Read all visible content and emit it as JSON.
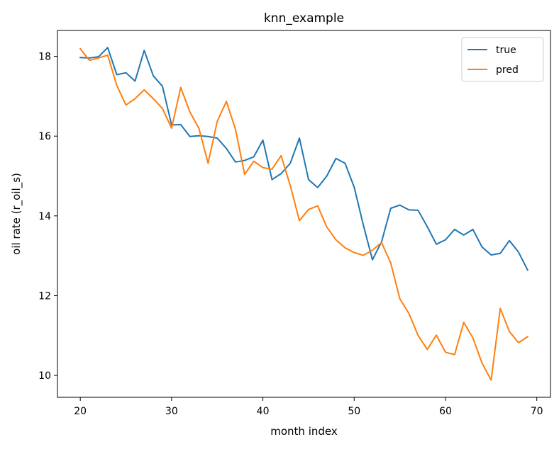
{
  "chart_data": {
    "type": "line",
    "title": "knn_example",
    "xlabel": "month index",
    "ylabel": "oil rate (r_oil_s)",
    "xlim": [
      17.5,
      71.5
    ],
    "ylim": [
      9.45,
      18.65
    ],
    "xticks": [
      20,
      30,
      40,
      50,
      60,
      70
    ],
    "yticks": [
      10,
      12,
      14,
      16,
      18
    ],
    "grid": false,
    "legend_position": "top-right",
    "x": [
      20,
      21,
      22,
      23,
      24,
      25,
      26,
      27,
      28,
      29,
      30,
      31,
      32,
      33,
      34,
      35,
      36,
      37,
      38,
      39,
      40,
      41,
      42,
      43,
      44,
      45,
      46,
      47,
      48,
      49,
      50,
      51,
      52,
      53,
      54,
      55,
      56,
      57,
      58,
      59,
      60,
      61,
      62,
      63,
      64,
      65,
      66,
      67,
      68,
      69
    ],
    "series": [
      {
        "name": "true",
        "color": "#1f77b4",
        "values": [
          17.97,
          17.96,
          17.99,
          18.22,
          17.54,
          17.59,
          17.38,
          18.15,
          17.51,
          17.25,
          16.28,
          16.29,
          15.99,
          16.01,
          15.99,
          15.95,
          15.69,
          15.35,
          15.39,
          15.48,
          15.9,
          14.91,
          15.06,
          15.32,
          15.95,
          14.91,
          14.71,
          15.0,
          15.44,
          15.32,
          14.72,
          13.77,
          12.9,
          13.35,
          14.19,
          14.27,
          14.15,
          14.14,
          13.73,
          13.29,
          13.4,
          13.66,
          13.52,
          13.66,
          13.22,
          13.02,
          13.06,
          13.38,
          13.09,
          12.64
        ]
      },
      {
        "name": "pred",
        "color": "#ff7f0e",
        "values": [
          18.19,
          17.9,
          17.96,
          18.03,
          17.27,
          16.78,
          16.94,
          17.16,
          16.94,
          16.69,
          16.2,
          17.22,
          16.61,
          16.19,
          15.32,
          16.37,
          16.87,
          16.17,
          15.04,
          15.37,
          15.21,
          15.17,
          15.51,
          14.76,
          13.88,
          14.16,
          14.25,
          13.72,
          13.4,
          13.2,
          13.08,
          13.01,
          13.14,
          13.33,
          12.82,
          11.92,
          11.55,
          11.0,
          10.65,
          11.01,
          10.58,
          10.52,
          11.33,
          10.94,
          10.31,
          9.88,
          11.68,
          11.1,
          10.82,
          10.97
        ]
      }
    ]
  }
}
